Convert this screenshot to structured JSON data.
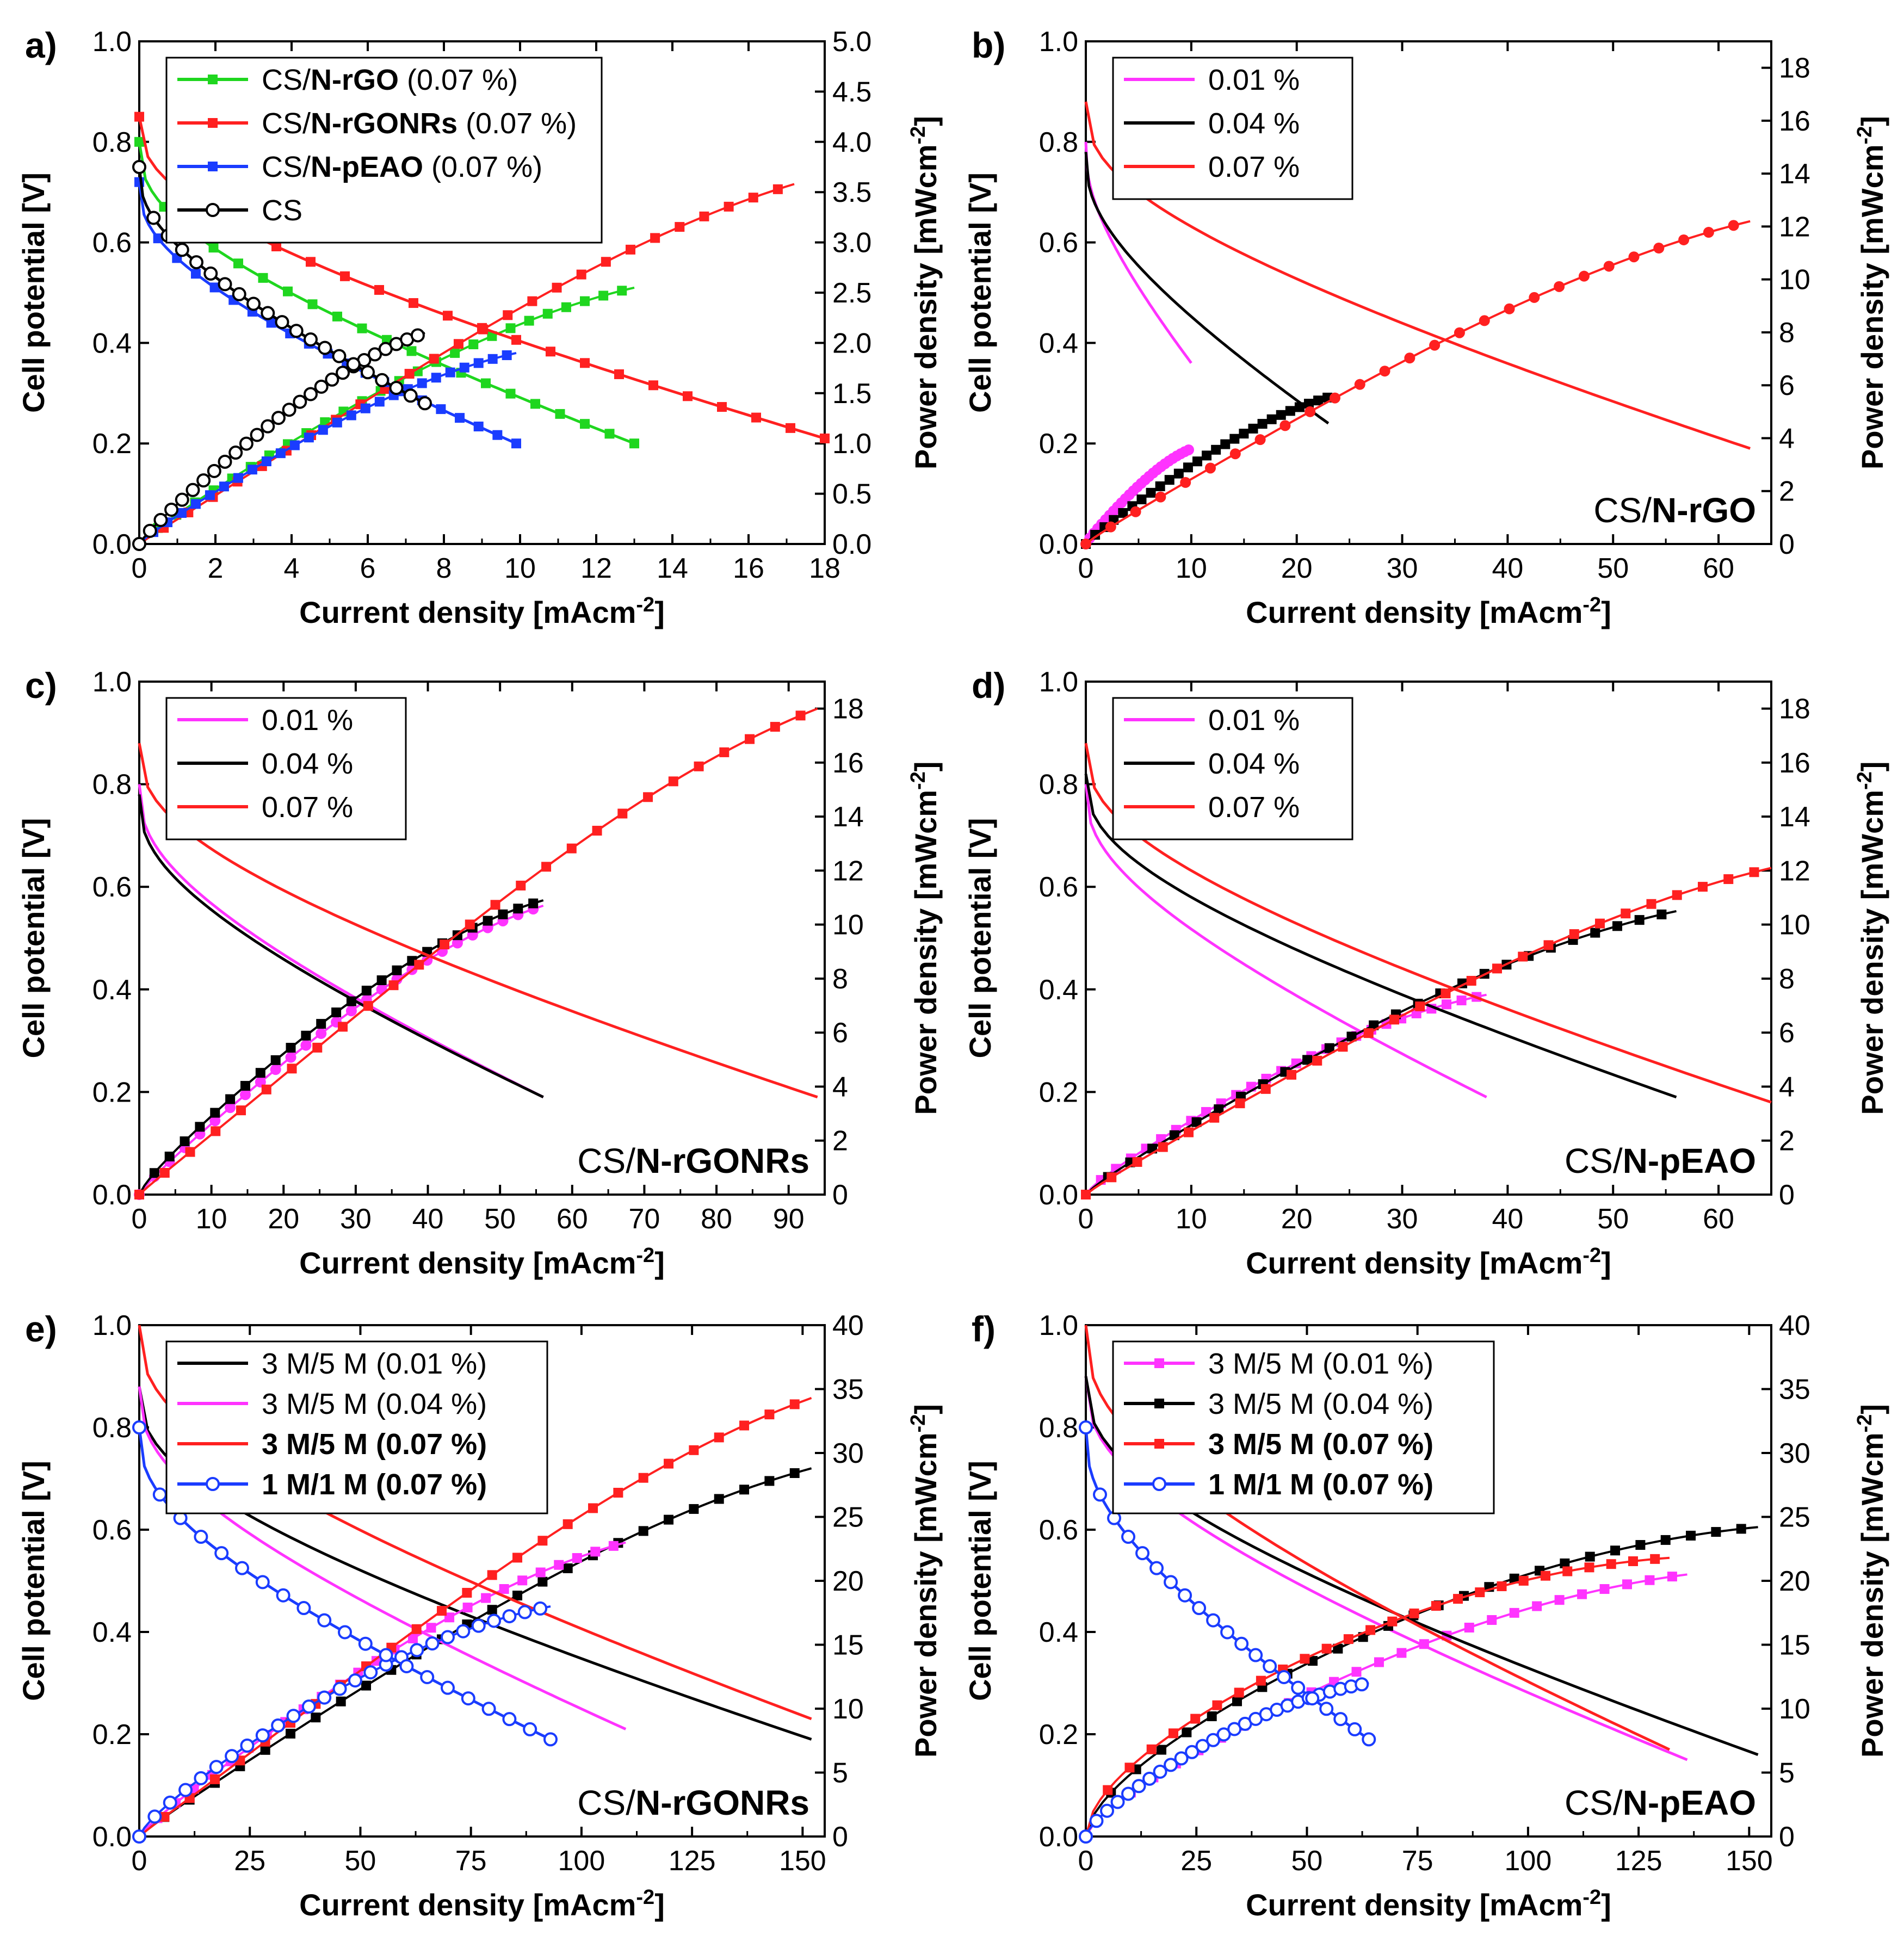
{
  "figure": {
    "panels": [
      "a)",
      "b)",
      "c)",
      "d)",
      "e)",
      "f)"
    ]
  },
  "axes": {
    "x_title": "Current density [mAcm-2]",
    "y_left_title": "Cell potential [V]",
    "y_right_title": "Power density [mWcm-2]"
  },
  "chart_data": [
    {
      "panel": "a)",
      "type": "line",
      "xlim": [
        0,
        18
      ],
      "xticks": [
        0,
        2,
        4,
        6,
        8,
        10,
        12,
        14,
        16,
        18
      ],
      "ylim_left": [
        0,
        1.0
      ],
      "yticks_left": [
        0.0,
        0.2,
        0.4,
        0.6,
        0.8,
        1.0
      ],
      "ylim_right": [
        0,
        5.0
      ],
      "yticks_right": [
        0.0,
        0.5,
        1.0,
        1.5,
        2.0,
        2.5,
        3.0,
        3.5,
        4.0,
        4.5,
        5.0
      ],
      "legend_placement": "top-left",
      "legend": [
        {
          "text": "CS/N-rGO (0.07 %)",
          "bold": "N-rGO",
          "color": "#1fd61f",
          "marker": "square"
        },
        {
          "text": "CS/N-rGONRs (0.07 %)",
          "bold": "N-rGONRs",
          "color": "#ff2020",
          "marker": "square"
        },
        {
          "text": "CS/N-pEAO (0.07 %)",
          "bold": "N-pEAO",
          "color": "#1a3cff",
          "marker": "square"
        },
        {
          "text": "CS",
          "bold": "",
          "color": "#000000",
          "marker": "open-circle"
        }
      ],
      "series": [
        {
          "name": "CS/N-rGO (0.07 %)",
          "color": "#1fd61f",
          "marker": "square",
          "potential": {
            "voc": 0.8,
            "i_max": 13.0,
            "v_end": 0.2
          },
          "power": {
            "i_max": 13.0,
            "p_end": 2.55,
            "shape": 0.85
          }
        },
        {
          "name": "CS/N-rGONRs (0.07 %)",
          "color": "#ff2020",
          "marker": "square",
          "potential": {
            "voc": 0.85,
            "i_max": 18.0,
            "v_end": 0.21
          },
          "power": {
            "i_max": 17.2,
            "p_end": 3.58,
            "shape": 0.95
          }
        },
        {
          "name": "CS/N-pEAO (0.07 %)",
          "color": "#1a3cff",
          "marker": "square",
          "potential": {
            "voc": 0.72,
            "i_max": 9.9,
            "v_end": 0.2
          },
          "power": {
            "i_max": 9.9,
            "p_end": 1.9,
            "shape": 0.85
          }
        },
        {
          "name": "CS",
          "color": "#000000",
          "marker": "open-circle",
          "potential": {
            "voc": 0.75,
            "i_max": 7.5,
            "v_end": 0.28
          },
          "power": {
            "i_max": 7.5,
            "p_end": 2.1,
            "shape": 0.85
          }
        }
      ],
      "sample_label": ""
    },
    {
      "panel": "b)",
      "type": "line",
      "xlim": [
        0,
        65
      ],
      "xticks": [
        0,
        10,
        20,
        30,
        40,
        50,
        60
      ],
      "ylim_left": [
        0,
        1.0
      ],
      "yticks_left": [
        0.0,
        0.2,
        0.4,
        0.6,
        0.8,
        1.0
      ],
      "ylim_right": [
        0,
        19
      ],
      "yticks_right": [
        0,
        2,
        4,
        6,
        8,
        10,
        12,
        14,
        16,
        18
      ],
      "legend_placement": "top-left",
      "legend": [
        {
          "text": "0.01 %",
          "bold": "",
          "color": "#ff33ff",
          "marker": "line"
        },
        {
          "text": "0.04 %",
          "bold": "",
          "color": "#000000",
          "marker": "line"
        },
        {
          "text": "0.07 %",
          "bold": "",
          "color": "#ff2020",
          "marker": "line"
        }
      ],
      "series": [
        {
          "name": "0.01 %",
          "color": "#ff33ff",
          "marker": "circle",
          "potential": {
            "voc": 0.8,
            "i_max": 10.0,
            "v_end": 0.36
          },
          "power": {
            "i_max": 10.0,
            "p_end": 3.6,
            "shape": 0.85
          }
        },
        {
          "name": "0.04 %",
          "color": "#000000",
          "marker": "square",
          "potential": {
            "voc": 0.78,
            "i_max": 23.0,
            "v_end": 0.24
          },
          "power": {
            "i_max": 23.5,
            "p_end": 5.6,
            "shape": 0.85
          }
        },
        {
          "name": "0.07 %",
          "color": "#ff2020",
          "marker": "circle",
          "potential": {
            "voc": 0.88,
            "i_max": 63.0,
            "v_end": 0.19
          },
          "power": {
            "i_max": 63.0,
            "p_end": 12.2,
            "shape": 0.9
          }
        }
      ],
      "sample_label": "CS/N-rGO",
      "sample_bold": "N-rGO"
    },
    {
      "panel": "c)",
      "type": "line",
      "xlim": [
        0,
        95
      ],
      "xticks": [
        0,
        10,
        20,
        30,
        40,
        50,
        60,
        70,
        80,
        90
      ],
      "ylim_left": [
        0,
        1.0
      ],
      "yticks_left": [
        0.0,
        0.2,
        0.4,
        0.6,
        0.8,
        1.0
      ],
      "ylim_right": [
        0,
        19
      ],
      "yticks_right": [
        0,
        2,
        4,
        6,
        8,
        10,
        12,
        14,
        16,
        18
      ],
      "legend_placement": "top-left",
      "legend": [
        {
          "text": "0.01 %",
          "bold": "",
          "color": "#ff33ff",
          "marker": "line"
        },
        {
          "text": "0.04 %",
          "bold": "",
          "color": "#000000",
          "marker": "line"
        },
        {
          "text": "0.07 %",
          "bold": "",
          "color": "#ff2020",
          "marker": "line"
        }
      ],
      "series": [
        {
          "name": "0.01 %",
          "color": "#ff33ff",
          "marker": "circle",
          "potential": {
            "voc": 0.8,
            "i_max": 56.0,
            "v_end": 0.19
          },
          "power": {
            "i_max": 56.0,
            "p_end": 10.7,
            "shape": 0.85
          }
        },
        {
          "name": "0.04 %",
          "color": "#000000",
          "marker": "square",
          "potential": {
            "voc": 0.78,
            "i_max": 56.0,
            "v_end": 0.19
          },
          "power": {
            "i_max": 56.0,
            "p_end": 10.9,
            "shape": 0.8
          }
        },
        {
          "name": "0.07 %",
          "color": "#ff2020",
          "marker": "square",
          "potential": {
            "voc": 0.88,
            "i_max": 94.0,
            "v_end": 0.19
          },
          "power": {
            "i_max": 94.0,
            "p_end": 18.0,
            "shape": 0.95
          }
        }
      ],
      "sample_label": "CS/N-rGONRs",
      "sample_bold": "N-rGONRs"
    },
    {
      "panel": "d)",
      "type": "line",
      "xlim": [
        0,
        65
      ],
      "xticks": [
        0,
        10,
        20,
        30,
        40,
        50,
        60
      ],
      "ylim_left": [
        0,
        1.0
      ],
      "yticks_left": [
        0.0,
        0.2,
        0.4,
        0.6,
        0.8,
        1.0
      ],
      "ylim_right": [
        0,
        19
      ],
      "yticks_right": [
        0,
        2,
        4,
        6,
        8,
        10,
        12,
        14,
        16,
        18
      ],
      "legend_placement": "top-left",
      "legend": [
        {
          "text": "0.01 %",
          "bold": "",
          "color": "#ff33ff",
          "marker": "line"
        },
        {
          "text": "0.04 %",
          "bold": "",
          "color": "#000000",
          "marker": "line"
        },
        {
          "text": "0.07 %",
          "bold": "",
          "color": "#ff2020",
          "marker": "line"
        }
      ],
      "series": [
        {
          "name": "0.01 %",
          "color": "#ff33ff",
          "marker": "square",
          "potential": {
            "voc": 0.8,
            "i_max": 38.0,
            "v_end": 0.19
          },
          "power": {
            "i_max": 38.0,
            "p_end": 7.4,
            "shape": 0.8
          }
        },
        {
          "name": "0.04 %",
          "color": "#000000",
          "marker": "square",
          "potential": {
            "voc": 0.82,
            "i_max": 56.0,
            "v_end": 0.19
          },
          "power": {
            "i_max": 56.0,
            "p_end": 10.5,
            "shape": 0.85
          }
        },
        {
          "name": "0.07 %",
          "color": "#ff2020",
          "marker": "square",
          "potential": {
            "voc": 0.88,
            "i_max": 65.0,
            "v_end": 0.18
          },
          "power": {
            "i_max": 65.0,
            "p_end": 12.1,
            "shape": 0.9
          }
        }
      ],
      "sample_label": "CS/N-pEAO",
      "sample_bold": "N-pEAO"
    },
    {
      "panel": "e)",
      "type": "line",
      "xlim": [
        0,
        155
      ],
      "xticks": [
        0,
        25,
        50,
        75,
        100,
        125,
        150
      ],
      "ylim_left": [
        0,
        1.0
      ],
      "yticks_left": [
        0.0,
        0.2,
        0.4,
        0.6,
        0.8,
        1.0
      ],
      "ylim_right": [
        0,
        40
      ],
      "yticks_right": [
        0,
        5,
        10,
        15,
        20,
        25,
        30,
        35,
        40
      ],
      "legend_placement": "top-left",
      "legend": [
        {
          "text": "3 M/5 M (0.01 %)",
          "bold": "",
          "color": "#000000",
          "marker": "line"
        },
        {
          "text": "3 M/5 M (0.04 %)",
          "bold": "",
          "color": "#ff33ff",
          "marker": "line"
        },
        {
          "text": "3 M/5 M (0.07 %)",
          "bold": "all",
          "color": "#ff2020",
          "marker": "line"
        },
        {
          "text": "1 M/1 M (0.07 %)",
          "bold": "all",
          "color": "#1a3cff",
          "marker": "open-circle"
        }
      ],
      "series": [
        {
          "name": "3 M/5 M (0.01 %)",
          "color": "#000000",
          "marker": "square",
          "potential": {
            "voc": 0.88,
            "i_max": 152.0,
            "v_end": 0.19
          },
          "power": {
            "i_max": 152.0,
            "p_end": 28.8,
            "shape": 0.9
          }
        },
        {
          "name": "3 M/5 M (0.04 %)",
          "color": "#ff33ff",
          "marker": "square",
          "potential": {
            "voc": 0.88,
            "i_max": 110.0,
            "v_end": 0.21
          },
          "power": {
            "i_max": 110.0,
            "p_end": 23.0,
            "shape": 0.85
          }
        },
        {
          "name": "3 M/5 M (0.07 %)",
          "color": "#ff2020",
          "marker": "square",
          "potential": {
            "voc": 1.0,
            "i_max": 152.0,
            "v_end": 0.23
          },
          "power": {
            "i_max": 152.0,
            "p_end": 34.3,
            "shape": 0.95
          }
        },
        {
          "name": "1 M/1 M (0.07 %)",
          "color": "#1a3cff",
          "marker": "open-circle",
          "potential": {
            "voc": 0.8,
            "i_max": 93.0,
            "v_end": 0.19
          },
          "power": {
            "i_max": 93.0,
            "p_end": 18.0,
            "shape": 0.75
          }
        }
      ],
      "sample_label": "CS/N-rGONRs",
      "sample_bold": "N-rGONRs"
    },
    {
      "panel": "f)",
      "type": "line",
      "xlim": [
        0,
        155
      ],
      "xticks": [
        0,
        25,
        50,
        75,
        100,
        125,
        150
      ],
      "ylim_left": [
        0,
        1.0
      ],
      "yticks_left": [
        0.0,
        0.2,
        0.4,
        0.6,
        0.8,
        1.0
      ],
      "ylim_right": [
        0,
        40
      ],
      "yticks_right": [
        0,
        5,
        10,
        15,
        20,
        25,
        30,
        35,
        40
      ],
      "legend_placement": "top-left",
      "legend": [
        {
          "text": "3 M/5 M (0.01 %)",
          "bold": "",
          "color": "#ff33ff",
          "marker": "square"
        },
        {
          "text": "3 M/5 M (0.04 %)",
          "bold": "",
          "color": "#000000",
          "marker": "square"
        },
        {
          "text": "3 M/5 M (0.07 %)",
          "bold": "all",
          "color": "#ff2020",
          "marker": "square"
        },
        {
          "text": "1 M/1 M (0.07 %)",
          "bold": "all",
          "color": "#1a3cff",
          "marker": "open-circle"
        }
      ],
      "series": [
        {
          "name": "3 M/5 M (0.01 %)",
          "color": "#ff33ff",
          "marker": "square",
          "potential": {
            "voc": 0.9,
            "i_max": 136.0,
            "v_end": 0.15
          },
          "power": {
            "i_max": 136.0,
            "p_end": 20.5,
            "shape": 0.7
          }
        },
        {
          "name": "3 M/5 M (0.04 %)",
          "color": "#000000",
          "marker": "square",
          "potential": {
            "voc": 0.9,
            "i_max": 152.0,
            "v_end": 0.16
          },
          "power": {
            "i_max": 152.0,
            "p_end": 24.2,
            "shape": 0.6
          }
        },
        {
          "name": "3 M/5 M (0.07 %)",
          "color": "#ff2020",
          "marker": "square",
          "potential": {
            "voc": 1.0,
            "i_max": 132.0,
            "v_end": 0.17
          },
          "power": {
            "i_max": 132.0,
            "p_end": 21.8,
            "shape": 0.55
          }
        },
        {
          "name": "1 M/1 M (0.07 %)",
          "color": "#1a3cff",
          "marker": "open-circle",
          "potential": {
            "voc": 0.8,
            "i_max": 64.0,
            "v_end": 0.19
          },
          "power": {
            "i_max": 64.0,
            "p_end": 12.0,
            "shape": 0.7
          }
        }
      ],
      "sample_label": "CS/N-pEAO",
      "sample_bold": "N-pEAO"
    }
  ]
}
